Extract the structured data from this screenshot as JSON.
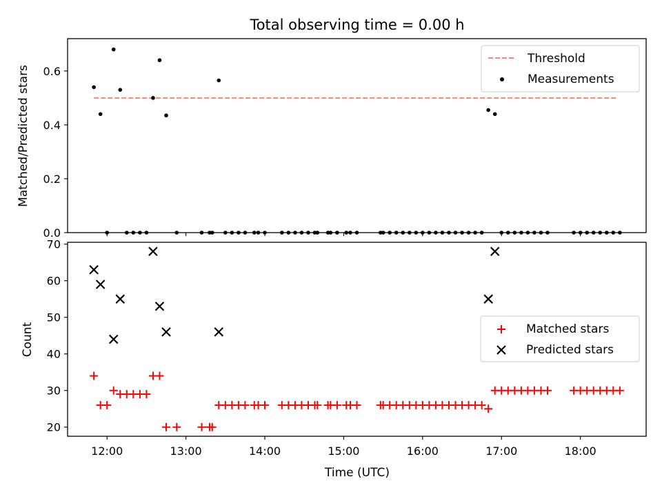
{
  "chart_data": [
    {
      "type": "scatter",
      "title": "Total observing time = 0.00 h",
      "xlabel": "",
      "ylabel": "Matched/Predicted stars",
      "xlim": [
        "11:30",
        "18:50"
      ],
      "ylim": [
        0,
        0.72
      ],
      "yticks": [
        0.0,
        0.2,
        0.4,
        0.6
      ],
      "ytick_labels": [
        "0.0",
        "0.2",
        "0.4",
        "0.6"
      ],
      "xticks": [
        "12:00",
        "13:00",
        "14:00",
        "15:00",
        "16:00",
        "17:00",
        "18:00"
      ],
      "show_xtick_labels": false,
      "grid": false,
      "legend": "upper right",
      "threshold": {
        "name": "Threshold",
        "value": 0.5,
        "x_range": [
          "11:50",
          "18:28"
        ],
        "color": "#ff8080",
        "style": "dashed"
      },
      "series": [
        {
          "name": "Measurements",
          "color": "#000000",
          "marker": "dot",
          "points": [
            [
              "11:50",
              0.54
            ],
            [
              "11:55",
              0.44
            ],
            [
              "12:00",
              0.0
            ],
            [
              "12:05",
              0.68
            ],
            [
              "12:10",
              0.53
            ],
            [
              "12:15",
              0.0
            ],
            [
              "12:20",
              0.0
            ],
            [
              "12:25",
              0.0
            ],
            [
              "12:30",
              0.0
            ],
            [
              "12:35",
              0.5
            ],
            [
              "12:40",
              0.64
            ],
            [
              "12:45",
              0.435
            ],
            [
              "12:53",
              0.0
            ],
            [
              "13:12",
              0.0
            ],
            [
              "13:18",
              0.0
            ],
            [
              "13:20",
              0.0
            ],
            [
              "13:25",
              0.565
            ],
            [
              "13:30",
              0.0
            ],
            [
              "13:35",
              0.0
            ],
            [
              "13:40",
              0.0
            ],
            [
              "13:45",
              0.0
            ],
            [
              "13:52",
              0.0
            ],
            [
              "13:55",
              0.0
            ],
            [
              "14:00",
              0.0
            ],
            [
              "14:13",
              0.0
            ],
            [
              "14:18",
              0.0
            ],
            [
              "14:23",
              0.0
            ],
            [
              "14:28",
              0.0
            ],
            [
              "14:33",
              0.0
            ],
            [
              "14:38",
              0.0
            ],
            [
              "14:40",
              0.0
            ],
            [
              "14:48",
              0.0
            ],
            [
              "14:50",
              0.0
            ],
            [
              "14:55",
              0.0
            ],
            [
              "15:02",
              0.0
            ],
            [
              "15:05",
              0.0
            ],
            [
              "15:10",
              0.0
            ],
            [
              "15:28",
              0.0
            ],
            [
              "15:30",
              0.0
            ],
            [
              "15:35",
              0.0
            ],
            [
              "15:40",
              0.0
            ],
            [
              "15:45",
              0.0
            ],
            [
              "15:50",
              0.0
            ],
            [
              "15:55",
              0.0
            ],
            [
              "16:00",
              0.0
            ],
            [
              "16:05",
              0.0
            ],
            [
              "16:10",
              0.0
            ],
            [
              "16:15",
              0.0
            ],
            [
              "16:20",
              0.0
            ],
            [
              "16:25",
              0.0
            ],
            [
              "16:30",
              0.0
            ],
            [
              "16:35",
              0.0
            ],
            [
              "16:40",
              0.0
            ],
            [
              "16:45",
              0.0
            ],
            [
              "16:50",
              0.455
            ],
            [
              "16:55",
              0.44
            ],
            [
              "17:00",
              0.0
            ],
            [
              "17:05",
              0.0
            ],
            [
              "17:10",
              0.0
            ],
            [
              "17:15",
              0.0
            ],
            [
              "17:20",
              0.0
            ],
            [
              "17:25",
              0.0
            ],
            [
              "17:30",
              0.0
            ],
            [
              "17:35",
              0.0
            ],
            [
              "17:55",
              0.0
            ],
            [
              "18:00",
              0.0
            ],
            [
              "18:05",
              0.0
            ],
            [
              "18:10",
              0.0
            ],
            [
              "18:15",
              0.0
            ],
            [
              "18:20",
              0.0
            ],
            [
              "18:25",
              0.0
            ],
            [
              "18:30",
              0.0
            ]
          ]
        }
      ]
    },
    {
      "type": "scatter",
      "title": "",
      "xlabel": "Time (UTC)",
      "ylabel": "Count",
      "xlim": [
        "11:30",
        "18:50"
      ],
      "ylim": [
        17.5,
        70.5
      ],
      "yticks": [
        20,
        30,
        40,
        50,
        60,
        70
      ],
      "ytick_labels": [
        "20",
        "30",
        "40",
        "50",
        "60",
        "70"
      ],
      "xticks": [
        "12:00",
        "13:00",
        "14:00",
        "15:00",
        "16:00",
        "17:00",
        "18:00"
      ],
      "xtick_labels": [
        "12:00",
        "13:00",
        "14:00",
        "15:00",
        "16:00",
        "17:00",
        "18:00"
      ],
      "grid": false,
      "legend": "center right",
      "series": [
        {
          "name": "Matched stars",
          "color": "#ff0000",
          "marker": "plus",
          "points": [
            [
              "11:50",
              34
            ],
            [
              "11:55",
              26
            ],
            [
              "12:00",
              26
            ],
            [
              "12:05",
              30
            ],
            [
              "12:10",
              29
            ],
            [
              "12:15",
              29
            ],
            [
              "12:20",
              29
            ],
            [
              "12:25",
              29
            ],
            [
              "12:30",
              29
            ],
            [
              "12:35",
              34
            ],
            [
              "12:40",
              34
            ],
            [
              "12:45",
              20
            ],
            [
              "12:53",
              20
            ],
            [
              "13:12",
              20
            ],
            [
              "13:18",
              20
            ],
            [
              "13:20",
              20
            ],
            [
              "13:25",
              26
            ],
            [
              "13:30",
              26
            ],
            [
              "13:35",
              26
            ],
            [
              "13:40",
              26
            ],
            [
              "13:45",
              26
            ],
            [
              "13:52",
              26
            ],
            [
              "13:55",
              26
            ],
            [
              "14:00",
              26
            ],
            [
              "14:13",
              26
            ],
            [
              "14:18",
              26
            ],
            [
              "14:23",
              26
            ],
            [
              "14:28",
              26
            ],
            [
              "14:33",
              26
            ],
            [
              "14:38",
              26
            ],
            [
              "14:40",
              26
            ],
            [
              "14:48",
              26
            ],
            [
              "14:50",
              26
            ],
            [
              "14:55",
              26
            ],
            [
              "15:02",
              26
            ],
            [
              "15:05",
              26
            ],
            [
              "15:10",
              26
            ],
            [
              "15:28",
              26
            ],
            [
              "15:30",
              26
            ],
            [
              "15:35",
              26
            ],
            [
              "15:40",
              26
            ],
            [
              "15:45",
              26
            ],
            [
              "15:50",
              26
            ],
            [
              "15:55",
              26
            ],
            [
              "16:00",
              26
            ],
            [
              "16:05",
              26
            ],
            [
              "16:10",
              26
            ],
            [
              "16:15",
              26
            ],
            [
              "16:20",
              26
            ],
            [
              "16:25",
              26
            ],
            [
              "16:30",
              26
            ],
            [
              "16:35",
              26
            ],
            [
              "16:40",
              26
            ],
            [
              "16:45",
              26
            ],
            [
              "16:50",
              25
            ],
            [
              "16:55",
              30
            ],
            [
              "17:00",
              30
            ],
            [
              "17:05",
              30
            ],
            [
              "17:10",
              30
            ],
            [
              "17:15",
              30
            ],
            [
              "17:20",
              30
            ],
            [
              "17:25",
              30
            ],
            [
              "17:30",
              30
            ],
            [
              "17:35",
              30
            ],
            [
              "17:55",
              30
            ],
            [
              "18:00",
              30
            ],
            [
              "18:05",
              30
            ],
            [
              "18:10",
              30
            ],
            [
              "18:15",
              30
            ],
            [
              "18:20",
              30
            ],
            [
              "18:25",
              30
            ],
            [
              "18:30",
              30
            ]
          ]
        },
        {
          "name": "Predicted stars",
          "color": "#000000",
          "marker": "x",
          "points": [
            [
              "11:50",
              63
            ],
            [
              "11:55",
              59
            ],
            [
              "12:05",
              44
            ],
            [
              "12:10",
              55
            ],
            [
              "12:35",
              68
            ],
            [
              "12:40",
              53
            ],
            [
              "12:45",
              46
            ],
            [
              "13:25",
              46
            ],
            [
              "16:50",
              55
            ],
            [
              "16:55",
              68
            ]
          ]
        }
      ]
    }
  ]
}
